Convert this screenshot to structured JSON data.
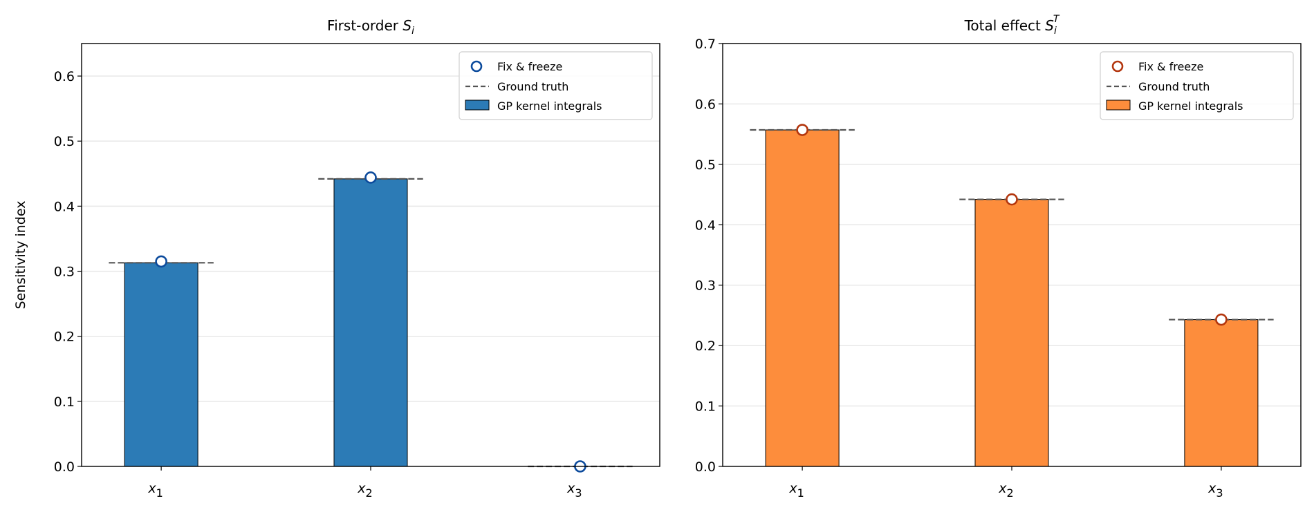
{
  "chart_data": [
    {
      "type": "bar",
      "title": "First-order S_i",
      "title_text": "First-order ",
      "title_sym": "S",
      "title_sub": "i",
      "title_sup": "",
      "ylabel": "Sensitivity index",
      "xlabel": "",
      "categories": [
        "x1",
        "x2",
        "x3"
      ],
      "category_base": "x",
      "category_subs": [
        "1",
        "2",
        "3"
      ],
      "ylim": [
        0,
        0.65
      ],
      "yticks": [
        0.0,
        0.1,
        0.2,
        0.3,
        0.4,
        0.5,
        0.6
      ],
      "ytick_labels": [
        "0.0",
        "0.1",
        "0.2",
        "0.3",
        "0.4",
        "0.5",
        "0.6"
      ],
      "grid": "y",
      "legend_position": "top-right",
      "legend": [
        "Fix & freeze",
        "Ground truth",
        "GP kernel integrals"
      ],
      "series": [
        {
          "name": "GP kernel integrals",
          "kind": "bar",
          "values": [
            0.313,
            0.442,
            0.0
          ],
          "color": "#2c7bb6"
        },
        {
          "name": "Ground truth",
          "kind": "dashed",
          "values": [
            0.313,
            0.442,
            0.0
          ],
          "color": "#555555"
        },
        {
          "name": "Fix & freeze",
          "kind": "marker",
          "values": [
            0.315,
            0.444,
            0.0
          ],
          "color": "#0b4a9c"
        }
      ]
    },
    {
      "type": "bar",
      "title": "Total effect S_i^T",
      "title_text": "Total effect ",
      "title_sym": "S",
      "title_sub": "i",
      "title_sup": "T",
      "ylabel": "",
      "xlabel": "",
      "categories": [
        "x1",
        "x2",
        "x3"
      ],
      "category_base": "x",
      "category_subs": [
        "1",
        "2",
        "3"
      ],
      "ylim": [
        0,
        0.7
      ],
      "yticks": [
        0.0,
        0.1,
        0.2,
        0.3,
        0.4,
        0.5,
        0.6,
        0.7
      ],
      "ytick_labels": [
        "0.0",
        "0.1",
        "0.2",
        "0.3",
        "0.4",
        "0.5",
        "0.6",
        "0.7"
      ],
      "grid": "y",
      "legend_position": "top-right",
      "legend": [
        "Fix & freeze",
        "Ground truth",
        "GP kernel integrals"
      ],
      "series": [
        {
          "name": "GP kernel integrals",
          "kind": "bar",
          "values": [
            0.557,
            0.442,
            0.243
          ],
          "color": "#fd8d3c"
        },
        {
          "name": "Ground truth",
          "kind": "dashed",
          "values": [
            0.557,
            0.442,
            0.243
          ],
          "color": "#555555"
        },
        {
          "name": "Fix & freeze",
          "kind": "marker",
          "values": [
            0.557,
            0.442,
            0.243
          ],
          "color": "#b3360e"
        }
      ]
    }
  ]
}
